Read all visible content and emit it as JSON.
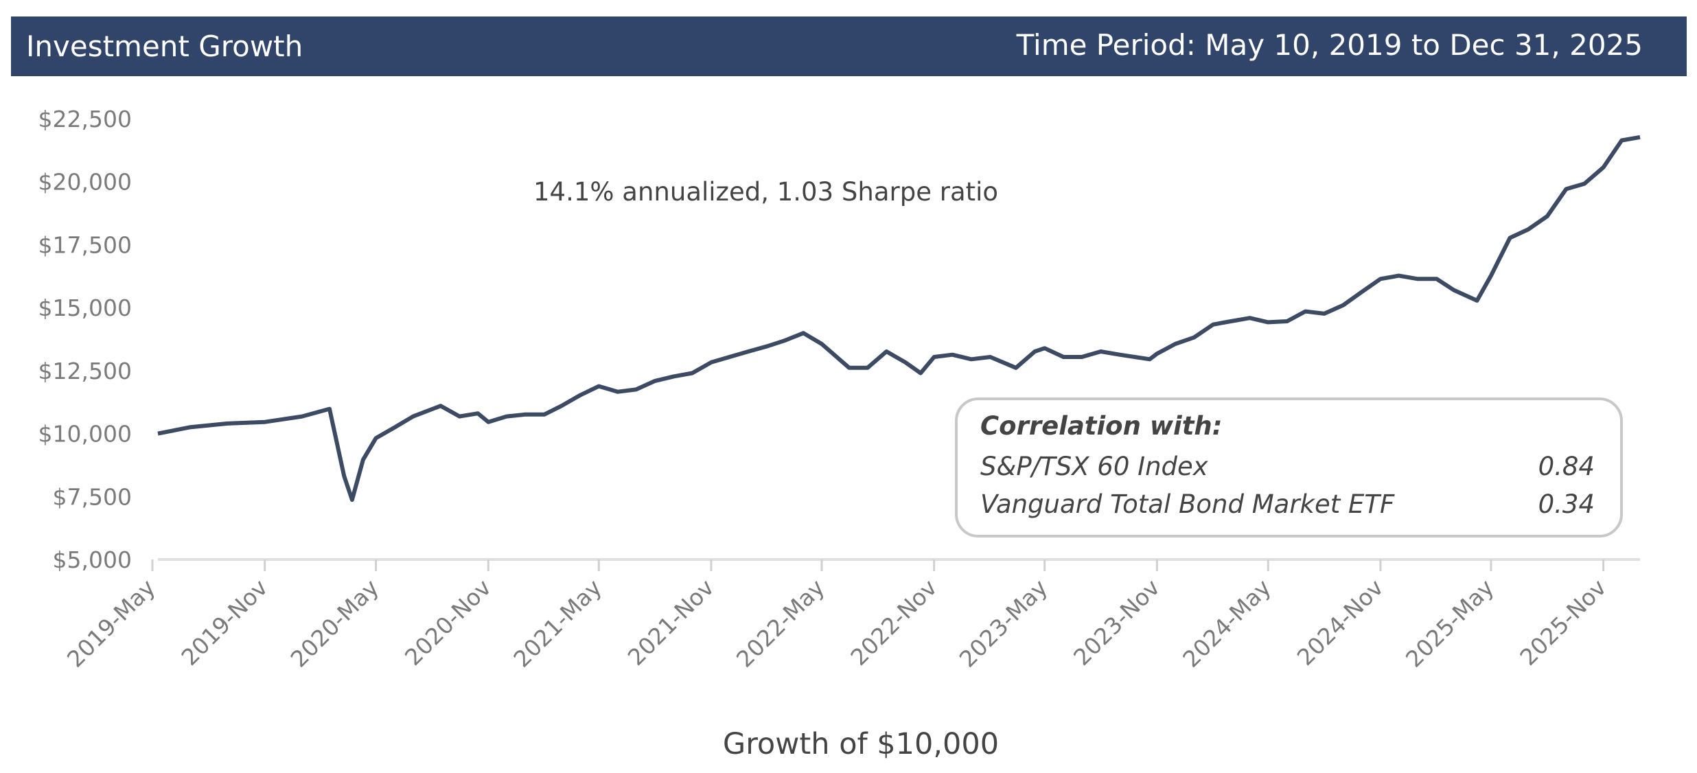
{
  "header": {
    "title": "Investment Growth",
    "period": "Time Period: May 10, 2019 to Dec 31, 2025",
    "background": "#314469"
  },
  "chart_data": {
    "type": "line",
    "title": "Investment Growth",
    "xlabel": "Growth of $10,000",
    "ylabel": "",
    "ylim": [
      5000,
      22500
    ],
    "yticks": [
      5000,
      7500,
      10000,
      12500,
      15000,
      17500,
      20000,
      22500
    ],
    "ytick_labels": [
      "$5,000",
      "$7,500",
      "$10,000",
      "$12,500",
      "$15,000",
      "$17,500",
      "$20,000",
      "$22,500"
    ],
    "xlim": [
      "2019-05-10",
      "2025-12-31"
    ],
    "xticks": [
      "2019-05-01",
      "2019-11-01",
      "2020-05-01",
      "2020-11-01",
      "2021-05-01",
      "2021-11-01",
      "2022-05-01",
      "2022-11-01",
      "2023-05-01",
      "2023-11-01",
      "2024-05-01",
      "2024-11-01",
      "2025-05-01",
      "2025-11-01"
    ],
    "xtick_labels": [
      "2019-May",
      "2019-Nov",
      "2020-May",
      "2020-Nov",
      "2021-May",
      "2021-Nov",
      "2022-May",
      "2022-Nov",
      "2023-May",
      "2023-Nov",
      "2024-May",
      "2024-Nov",
      "2025-May",
      "2025-Nov"
    ],
    "grid": false,
    "line_color": "#3d4a63",
    "annotation": "14.1% annualized, 1.03 Sharpe ratio",
    "series": [
      {
        "x": [
          "2019-05-10",
          "2019-07-01",
          "2019-09-01",
          "2019-11-01",
          "2020-01-01",
          "2020-02-15",
          "2020-03-10",
          "2020-03-23",
          "2020-04-10",
          "2020-05-01",
          "2020-06-01",
          "2020-07-01",
          "2020-08-15",
          "2020-09-15",
          "2020-10-15",
          "2020-11-01",
          "2020-12-01",
          "2021-01-01",
          "2021-02-01",
          "2021-03-01",
          "2021-04-01",
          "2021-05-01",
          "2021-06-01",
          "2021-07-01",
          "2021-08-01",
          "2021-09-01",
          "2021-10-01",
          "2021-11-01",
          "2021-12-01",
          "2022-01-01",
          "2022-02-01",
          "2022-03-01",
          "2022-04-01",
          "2022-05-01",
          "2022-06-15",
          "2022-07-15",
          "2022-08-15",
          "2022-09-15",
          "2022-10-10",
          "2022-11-01",
          "2022-12-01",
          "2023-01-01",
          "2023-02-01",
          "2023-03-15",
          "2023-04-15",
          "2023-05-01",
          "2023-06-01",
          "2023-07-01",
          "2023-08-01",
          "2023-09-01",
          "2023-10-20",
          "2023-11-01",
          "2023-12-01",
          "2024-01-01",
          "2024-02-01",
          "2024-03-01",
          "2024-04-01",
          "2024-05-01",
          "2024-06-01",
          "2024-07-01",
          "2024-08-01",
          "2024-09-01",
          "2024-10-01",
          "2024-11-01",
          "2024-12-01",
          "2025-01-01",
          "2025-02-01",
          "2025-03-01",
          "2025-04-08",
          "2025-05-01",
          "2025-06-01",
          "2025-07-01",
          "2025-08-01",
          "2025-09-01",
          "2025-10-01",
          "2025-11-01",
          "2025-12-01",
          "2025-12-31"
        ],
        "y": [
          10000,
          10250,
          10400,
          10460,
          10680,
          10980,
          8310,
          7370,
          8960,
          9820,
          10250,
          10680,
          11100,
          10680,
          10800,
          10460,
          10680,
          10760,
          10760,
          11100,
          11530,
          11880,
          11660,
          11750,
          12090,
          12270,
          12400,
          12830,
          13040,
          13260,
          13470,
          13690,
          13990,
          13560,
          12610,
          12610,
          13260,
          12830,
          12400,
          13040,
          13130,
          12950,
          13040,
          12610,
          13260,
          13390,
          13040,
          13040,
          13260,
          13130,
          12950,
          13170,
          13560,
          13820,
          14330,
          14460,
          14590,
          14420,
          14460,
          14850,
          14760,
          15100,
          15620,
          16140,
          16270,
          16140,
          16140,
          15700,
          15280,
          16270,
          17770,
          18110,
          18630,
          19710,
          19920,
          20570,
          21640,
          21770
        ]
      }
    ]
  },
  "legend": {
    "title": "Correlation with:",
    "rows": [
      {
        "name": "S&P/TSX 60 Index",
        "value": "0.84"
      },
      {
        "name": "Vanguard Total Bond Market ETF",
        "value": "0.34"
      }
    ]
  }
}
